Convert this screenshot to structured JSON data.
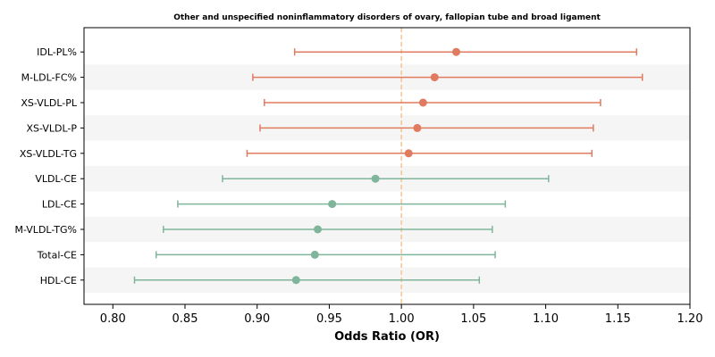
{
  "chart_data": {
    "type": "forest",
    "title": "Other and unspecified noninflammatory disorders of ovary, fallopian tube and broad ligament",
    "xlabel": "Odds Ratio (OR)",
    "xlim": [
      0.78,
      1.2
    ],
    "xticks": [
      "0.80",
      "0.85",
      "0.90",
      "0.95",
      "1.00",
      "1.05",
      "1.10",
      "1.15",
      "1.20"
    ],
    "reference_line": 1.0,
    "colors": {
      "positive": "#e07b5f",
      "negative": "#7fb59b",
      "reference": "#f3c58a",
      "band": "#f5f5f5"
    },
    "rows": [
      {
        "label": "IDL-PL%",
        "or": 1.038,
        "lo": 0.926,
        "hi": 1.163,
        "group": "positive"
      },
      {
        "label": "M-LDL-FC%",
        "or": 1.023,
        "lo": 0.897,
        "hi": 1.167,
        "group": "positive"
      },
      {
        "label": "XS-VLDL-PL",
        "or": 1.015,
        "lo": 0.905,
        "hi": 1.138,
        "group": "positive"
      },
      {
        "label": "XS-VLDL-P",
        "or": 1.011,
        "lo": 0.902,
        "hi": 1.133,
        "group": "positive"
      },
      {
        "label": "XS-VLDL-TG",
        "or": 1.005,
        "lo": 0.893,
        "hi": 1.132,
        "group": "positive"
      },
      {
        "label": "VLDL-CE",
        "or": 0.982,
        "lo": 0.876,
        "hi": 1.102,
        "group": "negative"
      },
      {
        "label": "LDL-CE",
        "or": 0.952,
        "lo": 0.845,
        "hi": 1.072,
        "group": "negative"
      },
      {
        "label": "M-VLDL-TG%",
        "or": 0.942,
        "lo": 0.835,
        "hi": 1.063,
        "group": "negative"
      },
      {
        "label": "Total-CE",
        "or": 0.94,
        "lo": 0.83,
        "hi": 1.065,
        "group": "negative"
      },
      {
        "label": "HDL-CE",
        "or": 0.927,
        "lo": 0.815,
        "hi": 1.054,
        "group": "negative"
      }
    ]
  }
}
